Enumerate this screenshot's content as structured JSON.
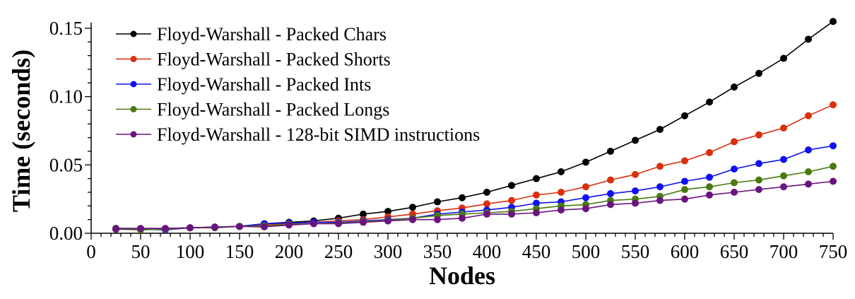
{
  "chart_data": {
    "type": "line",
    "title": "",
    "xlabel": "Nodes",
    "ylabel": "Time (seconds)",
    "xlim": [
      0,
      750
    ],
    "ylim": [
      0,
      0.15
    ],
    "x_ticks": [
      0,
      50,
      100,
      150,
      200,
      250,
      300,
      350,
      400,
      450,
      500,
      550,
      600,
      650,
      700,
      750
    ],
    "y_ticks": [
      "0.00",
      "0.05",
      "0.10",
      "0.15"
    ],
    "y_tick_values": [
      0,
      0.05,
      0.1,
      0.15
    ],
    "x_minor_step": 10,
    "y_minor_step": 0.01,
    "grid": false,
    "legend_position": "top-left",
    "x": [
      25,
      50,
      75,
      100,
      125,
      150,
      175,
      200,
      225,
      250,
      275,
      300,
      325,
      350,
      375,
      400,
      425,
      450,
      475,
      500,
      525,
      550,
      575,
      600,
      625,
      650,
      675,
      700,
      725,
      750
    ],
    "series": [
      {
        "name": "Floyd-Warshall - Packed Chars",
        "color": "#000000",
        "values": [
          0.0035,
          0.0035,
          0.0035,
          0.004,
          0.0045,
          0.005,
          0.007,
          0.008,
          0.009,
          0.011,
          0.014,
          0.016,
          0.019,
          0.023,
          0.026,
          0.03,
          0.035,
          0.04,
          0.045,
          0.052,
          0.06,
          0.068,
          0.076,
          0.086,
          0.096,
          0.107,
          0.117,
          0.128,
          0.142,
          0.155
        ]
      },
      {
        "name": "Floyd-Warshall - Packed Shorts",
        "color": "#d9300e",
        "values": [
          0.003,
          0.003,
          0.0035,
          0.004,
          0.0045,
          0.005,
          0.006,
          0.007,
          0.008,
          0.009,
          0.01,
          0.012,
          0.014,
          0.0165,
          0.0185,
          0.0215,
          0.024,
          0.028,
          0.03,
          0.034,
          0.039,
          0.043,
          0.049,
          0.053,
          0.059,
          0.067,
          0.072,
          0.077,
          0.086,
          0.094
        ]
      },
      {
        "name": "Floyd-Warshall - Packed Ints",
        "color": "#1010f0",
        "values": [
          0.003,
          0.003,
          0.0025,
          0.004,
          0.0045,
          0.005,
          0.007,
          0.0075,
          0.008,
          0.008,
          0.009,
          0.01,
          0.011,
          0.014,
          0.0155,
          0.017,
          0.019,
          0.022,
          0.023,
          0.026,
          0.029,
          0.031,
          0.034,
          0.038,
          0.041,
          0.047,
          0.051,
          0.054,
          0.061,
          0.064
        ]
      },
      {
        "name": "Floyd-Warshall - Packed Longs",
        "color": "#4a7a10",
        "values": [
          0.003,
          0.0025,
          0.003,
          0.004,
          0.004,
          0.005,
          0.0055,
          0.0065,
          0.007,
          0.0075,
          0.0085,
          0.0095,
          0.011,
          0.013,
          0.014,
          0.015,
          0.016,
          0.018,
          0.02,
          0.021,
          0.024,
          0.025,
          0.027,
          0.032,
          0.034,
          0.037,
          0.039,
          0.042,
          0.045,
          0.049
        ]
      },
      {
        "name": "Floyd-Warshall - 128-bit SIMD instructions",
        "color": "#6a1480",
        "values": [
          0.003,
          0.0035,
          0.0035,
          0.004,
          0.0045,
          0.005,
          0.0047,
          0.006,
          0.007,
          0.007,
          0.008,
          0.009,
          0.01,
          0.01,
          0.011,
          0.014,
          0.014,
          0.015,
          0.017,
          0.018,
          0.021,
          0.022,
          0.024,
          0.025,
          0.028,
          0.03,
          0.032,
          0.034,
          0.036,
          0.038
        ]
      }
    ]
  }
}
